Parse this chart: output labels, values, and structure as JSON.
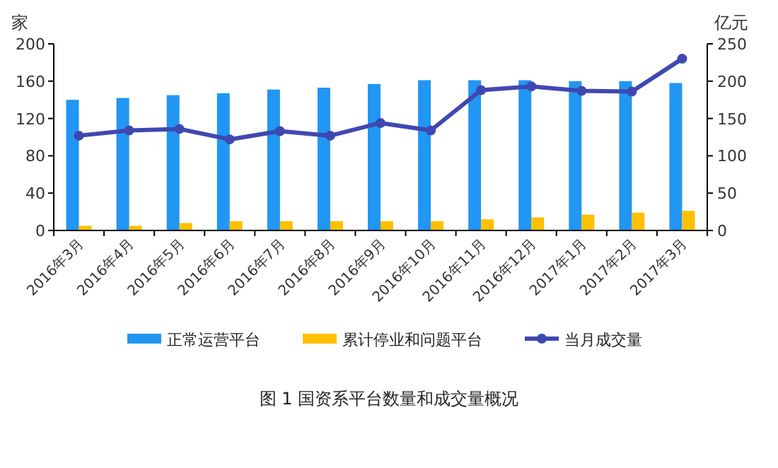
{
  "chart_data": {
    "type": "bar",
    "title": "图 1 国资系平台数量和成交量概况",
    "ylabel": "家",
    "y2label": "亿元",
    "categories": [
      "2016年3月",
      "2016年4月",
      "2016年5月",
      "2016年6月",
      "2016年7月",
      "2016年8月",
      "2016年9月",
      "2016年10月",
      "2016年11月",
      "2016年12月",
      "2017年1月",
      "2017年2月",
      "2017年3月"
    ],
    "series": [
      {
        "name": "正常运营平台",
        "color": "#2196f3",
        "values": [
          140,
          142,
          145,
          147,
          151,
          153,
          157,
          161,
          161,
          161,
          160,
          160,
          158
        ]
      },
      {
        "name": "累计停业和问题平台",
        "color": "#ffc000",
        "values": [
          5,
          5,
          8,
          10,
          10,
          10,
          10,
          10,
          12,
          14,
          17,
          19,
          21
        ]
      },
      {
        "name": "当月成交量",
        "type": "line",
        "axis": "y2",
        "color": "#3f48b0",
        "marker": "circle",
        "values": [
          127,
          134,
          136,
          122,
          133,
          127,
          144,
          134,
          188,
          193,
          187,
          186,
          230
        ]
      }
    ],
    "ylim": [
      0,
      200
    ],
    "yticks": [
      0,
      40,
      80,
      120,
      160,
      200
    ],
    "y2lim": [
      0,
      250
    ],
    "y2ticks": [
      0,
      50,
      100,
      150,
      200,
      250
    ],
    "legend": "bottom",
    "grid": false
  }
}
